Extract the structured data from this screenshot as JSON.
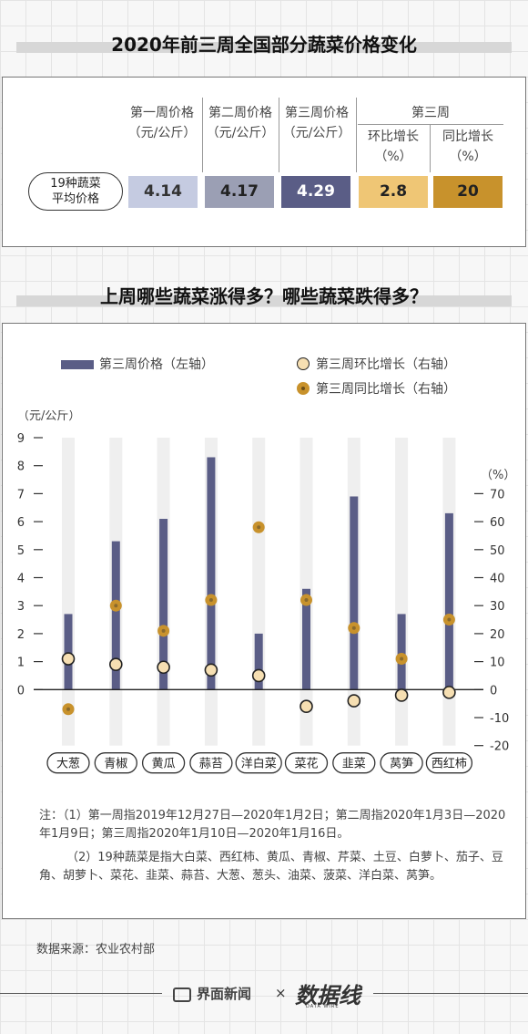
{
  "title1": "2020年前三周全国部分蔬菜价格变化",
  "table": {
    "headers": {
      "week1": [
        "第一周价格",
        "（元/公斤）"
      ],
      "week2": [
        "第二周价格",
        "（元/公斤）"
      ],
      "week3": [
        "第三周价格",
        "（元/公斤）"
      ],
      "week3_group": "第三周",
      "mom": [
        "环比增长",
        "（%）"
      ],
      "yoy": [
        "同比增长",
        "（%）"
      ]
    },
    "row_label": [
      "19种蔬菜",
      "平均价格"
    ],
    "values": [
      "4.14",
      "4.17",
      "4.29",
      "2.8",
      "20"
    ],
    "colors": [
      "#c5cbe1",
      "#9b9fb4",
      "#5a5d86",
      "#efc675",
      "#c8922c"
    ]
  },
  "title2": "上周哪些蔬菜涨得多？哪些蔬菜跌得多？",
  "legend": {
    "bar": "第三周价格（左轴）",
    "mom": "第三周环比增长（右轴）",
    "yoy": "第三周同比增长（右轴）"
  },
  "colors": {
    "bar": "#5a5d86",
    "mom_fill": "#f6dfb2",
    "yoy_fill": "#c8922c",
    "yoy_center": "#8a6a2c",
    "track": "#efefef"
  },
  "chart_data": {
    "type": "bar",
    "categories": [
      "大葱",
      "青椒",
      "黄瓜",
      "蒜苔",
      "洋白菜",
      "菜花",
      "韭菜",
      "莴笋",
      "西红柿"
    ],
    "left_axis": {
      "label": "（元/公斤）",
      "ylim": [
        0,
        9
      ],
      "ticks": [
        "0",
        "1",
        "2",
        "3",
        "4",
        "5",
        "6",
        "7",
        "8",
        "9"
      ]
    },
    "right_axis": {
      "label": "（%）",
      "ylim": [
        -20,
        70
      ],
      "ticks": [
        "-20",
        "-10",
        "0",
        "10",
        "20",
        "30",
        "40",
        "50",
        "60",
        "70"
      ]
    },
    "series": [
      {
        "name": "第三周价格（左轴）",
        "axis": "left",
        "type": "bar",
        "values": [
          2.7,
          5.3,
          6.1,
          8.3,
          2.0,
          3.6,
          6.9,
          2.7,
          6.3
        ]
      },
      {
        "name": "第三周环比增长（右轴）",
        "axis": "right",
        "type": "scatter",
        "values": [
          11,
          9,
          8,
          7,
          5,
          -6,
          -4,
          -2,
          -1
        ]
      },
      {
        "name": "第三周同比增长（右轴）",
        "axis": "right",
        "type": "scatter",
        "values": [
          -7,
          30,
          21,
          32,
          58,
          32,
          22,
          11,
          25
        ]
      }
    ]
  },
  "notes": [
    "注：（1）第一周指2019年12月27日—2020年1月2日；第二周指2020年1月3日—2020年1月9日；第三周指2020年1月10日—2020年1月16日。",
    "（2）19种蔬菜是指大白菜、西红柿、黄瓜、青椒、芹菜、土豆、白萝卜、茄子、豆角、胡萝卜、菜花、韭菜、蒜苔、大葱、葱头、油菜、菠菜、洋白菜、莴笋。"
  ],
  "source": "数据来源：农业农村部",
  "footer": {
    "logo1": "界面新闻",
    "times": "×",
    "logo2": "数据线",
    "logo2_sub": "DATA WIRE"
  }
}
